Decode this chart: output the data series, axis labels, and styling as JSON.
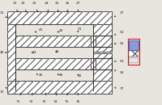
{
  "bg_color": "#e8e4de",
  "line_color": "#333333",
  "hatch_color": "#777777",
  "white_fill": "#d8d4ce",
  "fig_w": 2.0,
  "fig_h": 1.3,
  "dpi": 100
}
